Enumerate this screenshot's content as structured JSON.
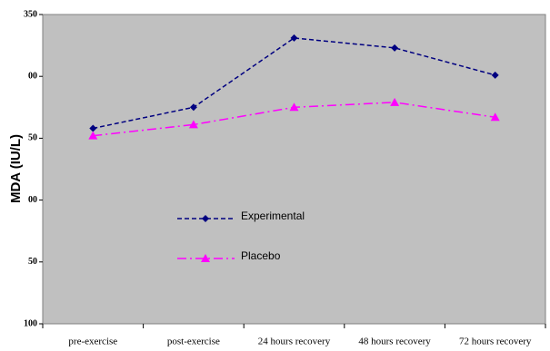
{
  "chart_data": {
    "type": "line",
    "y_label": "MDA (IU/L)",
    "categories": [
      "pre-exercise",
      "post-exercise",
      "24 hours recovery",
      "48 hours recovery",
      "72 hours recovery"
    ],
    "series": [
      {
        "name": "Experimental",
        "color": "#000080",
        "marker": "diamond",
        "dash": "dashed",
        "values": [
          258,
          275,
          331,
          323,
          301
        ]
      },
      {
        "name": "Placebo",
        "color": "#ff00ff",
        "marker": "triangle",
        "dash": "dashdot",
        "values": [
          252,
          261,
          275,
          279,
          267
        ]
      }
    ],
    "ylim": [
      100,
      350
    ],
    "yticks": [
      100,
      {
        "value": 150,
        "label": "50"
      },
      {
        "value": 200,
        "label": "00"
      },
      {
        "value": 250,
        "label": "50"
      },
      {
        "value": 300,
        "label": "00"
      },
      350
    ],
    "grid": false
  }
}
